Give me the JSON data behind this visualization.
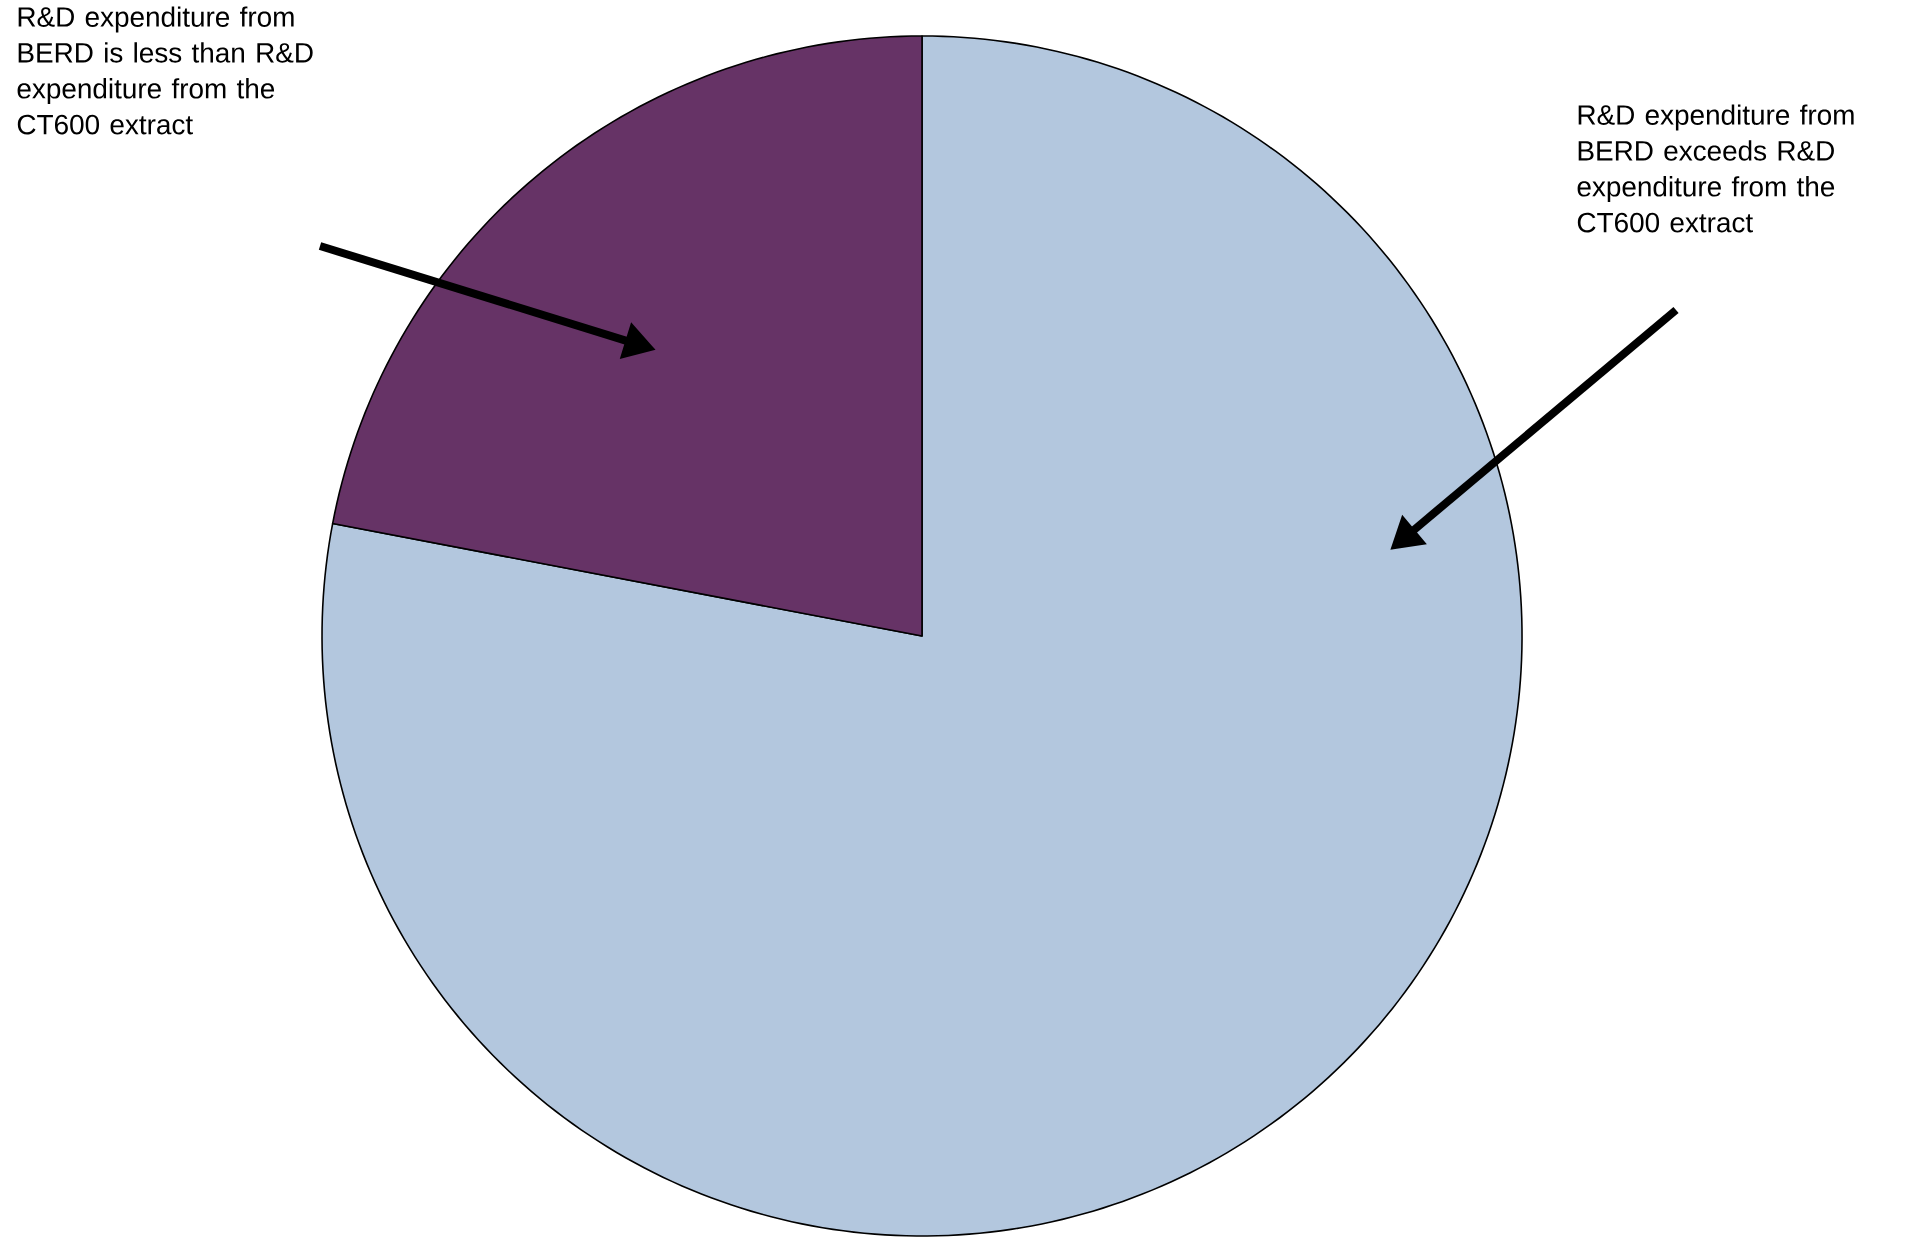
{
  "chart_data": {
    "type": "pie",
    "categories": [
      "R&D expenditure from BERD exceeds R&D expenditure from the CT600 extract",
      "R&D expenditure from BERD is less than R&D expenditure from the CT600 extract"
    ],
    "values": [
      78,
      22
    ],
    "colors": [
      "#b3c7de",
      "#663366"
    ]
  }
}
